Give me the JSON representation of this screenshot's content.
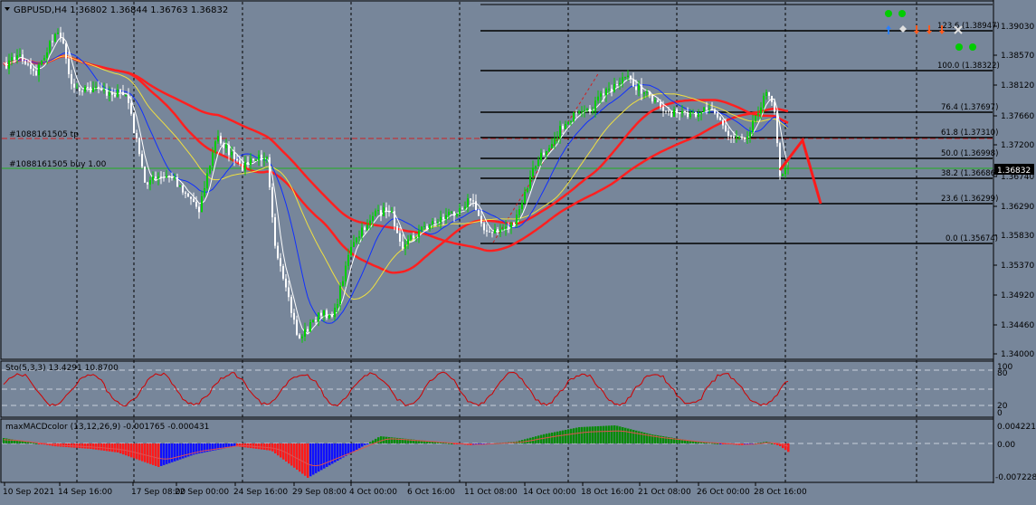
{
  "main_header": {
    "text": "GBPUSD,H4  1.36802 1.36844 1.36763 1.36832"
  },
  "price_axis": [
    "1.39030",
    "1.38570",
    "1.38120",
    "1.37660",
    "1.37200",
    "1.36740",
    "1.36290",
    "1.35830",
    "1.35370",
    "1.34920",
    "1.34460",
    "1.34000"
  ],
  "current_price": "1.36832",
  "fib_levels": [
    {
      "label": "123.6 (1.38947)"
    },
    {
      "label": "100.0 (1.38322)"
    },
    {
      "label": "76.4 (1.37697)"
    },
    {
      "label": "61.8 (1.37310)"
    },
    {
      "label": "50.0 (1.36998)"
    },
    {
      "label": "38.2 (1.36686)"
    },
    {
      "label": "23.6 (1.36299)"
    },
    {
      "label": "0.0 (1.35674)"
    }
  ],
  "orders": {
    "tp_label": "#1088161505 tp",
    "buy_label": "#1088161505 buy 1.00"
  },
  "stochastic": {
    "header": "Sto(5,3,3) 13.4291 10.8700",
    "levels": [
      "100",
      "80",
      "20",
      "0"
    ]
  },
  "macd": {
    "header": "maxMACDcolor (13,12,26,9) -0.001765 -0.000431",
    "levels": [
      "0.004221",
      "0.00",
      "-0.007228"
    ]
  },
  "time_axis": [
    "10 Sep 2021",
    "14 Sep 16:00",
    "17 Sep 08:00",
    "22 Sep 00:00",
    "24 Sep 16:00",
    "29 Sep 08:00",
    "4 Oct 00:00",
    "6 Oct 16:00",
    "11 Oct 08:00",
    "14 Oct 00:00",
    "18 Oct 16:00",
    "21 Oct 08:00",
    "26 Oct 00:00",
    "28 Oct 16:00"
  ],
  "colors": {
    "background": "#77869a",
    "bull_candle": "#00d000",
    "bear_candle": "#ffffff",
    "ma_red": "#ff2020",
    "ma_yellow": "#f0e040",
    "ma_blue": "#1030ff",
    "ma_white": "#ffffff",
    "fib_line": "#000000"
  },
  "icons": [
    "green-dot-icon",
    "diamond-icon",
    "arrow-up-icon",
    "arrow-down-icon",
    "close-icon"
  ]
}
